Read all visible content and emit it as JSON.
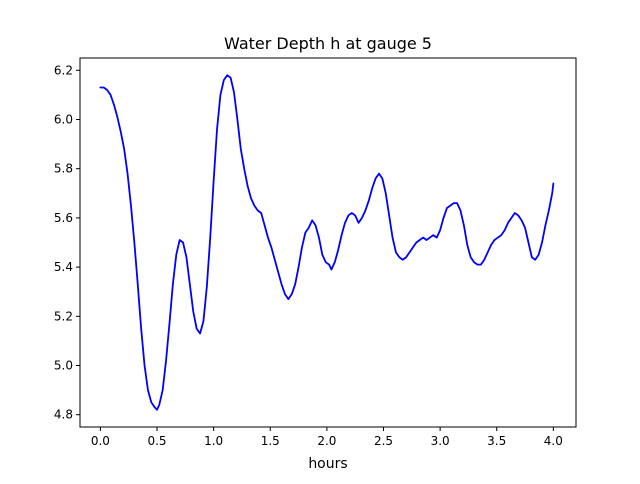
{
  "chart_data": {
    "type": "line",
    "title": "Water Depth h at gauge 5",
    "xlabel": "hours",
    "ylabel": "",
    "xlim": [
      -0.18,
      4.2
    ],
    "ylim": [
      4.75,
      6.25
    ],
    "x_ticks": [
      0.0,
      0.5,
      1.0,
      1.5,
      2.0,
      2.5,
      3.0,
      3.5,
      4.0
    ],
    "x_tick_labels": [
      "0.0",
      "0.5",
      "1.0",
      "1.5",
      "2.0",
      "2.5",
      "3.0",
      "3.5",
      "4.0"
    ],
    "y_ticks": [
      4.8,
      5.0,
      5.2,
      5.4,
      5.6,
      5.8,
      6.0,
      6.2
    ],
    "y_tick_labels": [
      "4.8",
      "5.0",
      "5.2",
      "5.4",
      "5.6",
      "5.8",
      "6.0",
      "6.2"
    ],
    "grid": false,
    "legend": "none",
    "series": [
      {
        "color": "#0000ff",
        "points": [
          [
            0.0,
            6.13
          ],
          [
            0.03,
            6.13
          ],
          [
            0.06,
            6.12
          ],
          [
            0.09,
            6.1
          ],
          [
            0.12,
            6.06
          ],
          [
            0.15,
            6.01
          ],
          [
            0.18,
            5.95
          ],
          [
            0.21,
            5.88
          ],
          [
            0.24,
            5.78
          ],
          [
            0.27,
            5.65
          ],
          [
            0.3,
            5.5
          ],
          [
            0.33,
            5.33
          ],
          [
            0.36,
            5.15
          ],
          [
            0.39,
            5.0
          ],
          [
            0.42,
            4.9
          ],
          [
            0.45,
            4.85
          ],
          [
            0.48,
            4.83
          ],
          [
            0.5,
            4.82
          ],
          [
            0.52,
            4.84
          ],
          [
            0.55,
            4.9
          ],
          [
            0.58,
            5.02
          ],
          [
            0.61,
            5.17
          ],
          [
            0.64,
            5.33
          ],
          [
            0.67,
            5.45
          ],
          [
            0.7,
            5.51
          ],
          [
            0.73,
            5.5
          ],
          [
            0.76,
            5.44
          ],
          [
            0.79,
            5.33
          ],
          [
            0.82,
            5.22
          ],
          [
            0.85,
            5.15
          ],
          [
            0.88,
            5.13
          ],
          [
            0.91,
            5.18
          ],
          [
            0.94,
            5.32
          ],
          [
            0.97,
            5.52
          ],
          [
            1.0,
            5.75
          ],
          [
            1.03,
            5.96
          ],
          [
            1.06,
            6.1
          ],
          [
            1.09,
            6.16
          ],
          [
            1.12,
            6.18
          ],
          [
            1.15,
            6.17
          ],
          [
            1.18,
            6.11
          ],
          [
            1.21,
            6.0
          ],
          [
            1.24,
            5.88
          ],
          [
            1.27,
            5.8
          ],
          [
            1.3,
            5.73
          ],
          [
            1.33,
            5.68
          ],
          [
            1.36,
            5.65
          ],
          [
            1.39,
            5.63
          ],
          [
            1.42,
            5.62
          ],
          [
            1.45,
            5.57
          ],
          [
            1.48,
            5.52
          ],
          [
            1.51,
            5.48
          ],
          [
            1.54,
            5.43
          ],
          [
            1.57,
            5.38
          ],
          [
            1.6,
            5.33
          ],
          [
            1.63,
            5.29
          ],
          [
            1.66,
            5.27
          ],
          [
            1.69,
            5.29
          ],
          [
            1.72,
            5.33
          ],
          [
            1.75,
            5.4
          ],
          [
            1.78,
            5.48
          ],
          [
            1.81,
            5.54
          ],
          [
            1.84,
            5.56
          ],
          [
            1.87,
            5.59
          ],
          [
            1.9,
            5.57
          ],
          [
            1.93,
            5.52
          ],
          [
            1.96,
            5.45
          ],
          [
            1.99,
            5.42
          ],
          [
            2.02,
            5.41
          ],
          [
            2.04,
            5.39
          ],
          [
            2.07,
            5.42
          ],
          [
            2.1,
            5.47
          ],
          [
            2.13,
            5.53
          ],
          [
            2.16,
            5.58
          ],
          [
            2.19,
            5.61
          ],
          [
            2.22,
            5.62
          ],
          [
            2.25,
            5.61
          ],
          [
            2.28,
            5.58
          ],
          [
            2.31,
            5.6
          ],
          [
            2.34,
            5.63
          ],
          [
            2.37,
            5.67
          ],
          [
            2.4,
            5.72
          ],
          [
            2.43,
            5.76
          ],
          [
            2.46,
            5.78
          ],
          [
            2.49,
            5.76
          ],
          [
            2.52,
            5.7
          ],
          [
            2.55,
            5.61
          ],
          [
            2.58,
            5.52
          ],
          [
            2.61,
            5.46
          ],
          [
            2.64,
            5.44
          ],
          [
            2.67,
            5.43
          ],
          [
            2.7,
            5.44
          ],
          [
            2.73,
            5.46
          ],
          [
            2.76,
            5.48
          ],
          [
            2.79,
            5.5
          ],
          [
            2.82,
            5.51
          ],
          [
            2.85,
            5.52
          ],
          [
            2.88,
            5.51
          ],
          [
            2.91,
            5.52
          ],
          [
            2.94,
            5.53
          ],
          [
            2.97,
            5.52
          ],
          [
            3.0,
            5.55
          ],
          [
            3.03,
            5.6
          ],
          [
            3.06,
            5.64
          ],
          [
            3.09,
            5.65
          ],
          [
            3.12,
            5.66
          ],
          [
            3.15,
            5.66
          ],
          [
            3.18,
            5.63
          ],
          [
            3.21,
            5.57
          ],
          [
            3.24,
            5.49
          ],
          [
            3.27,
            5.44
          ],
          [
            3.3,
            5.42
          ],
          [
            3.33,
            5.41
          ],
          [
            3.36,
            5.41
          ],
          [
            3.39,
            5.43
          ],
          [
            3.42,
            5.46
          ],
          [
            3.45,
            5.49
          ],
          [
            3.48,
            5.51
          ],
          [
            3.51,
            5.52
          ],
          [
            3.54,
            5.53
          ],
          [
            3.57,
            5.55
          ],
          [
            3.6,
            5.58
          ],
          [
            3.63,
            5.6
          ],
          [
            3.66,
            5.62
          ],
          [
            3.69,
            5.61
          ],
          [
            3.72,
            5.59
          ],
          [
            3.75,
            5.56
          ],
          [
            3.78,
            5.5
          ],
          [
            3.81,
            5.44
          ],
          [
            3.84,
            5.43
          ],
          [
            3.87,
            5.45
          ],
          [
            3.9,
            5.5
          ],
          [
            3.93,
            5.57
          ],
          [
            3.96,
            5.63
          ],
          [
            3.99,
            5.7
          ],
          [
            4.0,
            5.74
          ]
        ]
      }
    ]
  }
}
